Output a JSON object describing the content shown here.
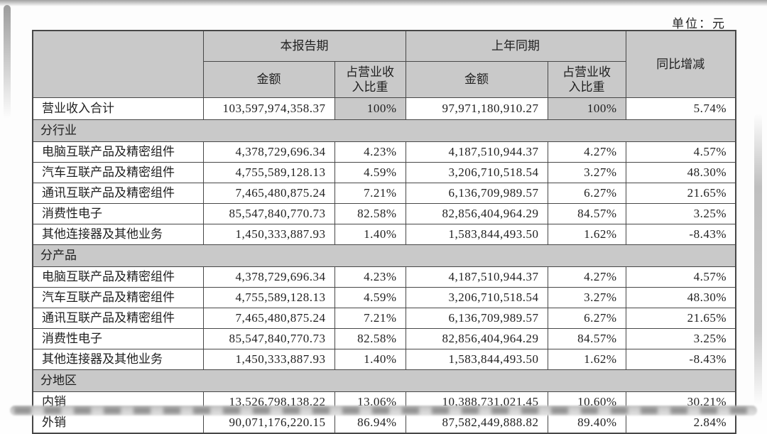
{
  "page": {
    "unit_label": "单位：元"
  },
  "colors": {
    "header_fill": "#c9c9c9",
    "border": "#474747",
    "text": "#1f1f1f"
  },
  "table": {
    "header": {
      "current_period": "本报告期",
      "prior_period": "上年同期",
      "yoy_change": "同比增减",
      "amount_current": "金额",
      "amount_prior": "金额",
      "revenue_share_current": "占营业收入比重",
      "revenue_share_prior": "占营业收入比重"
    },
    "total_row": {
      "label": "营业收入合计",
      "cur_amount": "103,597,974,358.37",
      "cur_share": "100%",
      "prior_amount": "97,971,180,910.27",
      "prior_share": "100%",
      "yoy": "5.74%"
    },
    "sections": [
      {
        "title": "分行业",
        "rows": [
          {
            "label": "电脑互联产品及精密组件",
            "cur_amount": "4,378,729,696.34",
            "cur_share": "4.23%",
            "prior_amount": "4,187,510,944.37",
            "prior_share": "4.27%",
            "yoy": "4.57%"
          },
          {
            "label": "汽车互联产品及精密组件",
            "cur_amount": "4,755,589,128.13",
            "cur_share": "4.59%",
            "prior_amount": "3,206,710,518.54",
            "prior_share": "3.27%",
            "yoy": "48.30%"
          },
          {
            "label": "通讯互联产品及精密组件",
            "cur_amount": "7,465,480,875.24",
            "cur_share": "7.21%",
            "prior_amount": "6,136,709,989.57",
            "prior_share": "6.27%",
            "yoy": "21.65%"
          },
          {
            "label": "消费性电子",
            "cur_amount": "85,547,840,770.73",
            "cur_share": "82.58%",
            "prior_amount": "82,856,404,964.29",
            "prior_share": "84.57%",
            "yoy": "3.25%"
          },
          {
            "label": "其他连接器及其他业务",
            "cur_amount": "1,450,333,887.93",
            "cur_share": "1.40%",
            "prior_amount": "1,583,844,493.50",
            "prior_share": "1.62%",
            "yoy": "-8.43%"
          }
        ]
      },
      {
        "title": "分产品",
        "rows": [
          {
            "label": "电脑互联产品及精密组件",
            "cur_amount": "4,378,729,696.34",
            "cur_share": "4.23%",
            "prior_amount": "4,187,510,944.37",
            "prior_share": "4.27%",
            "yoy": "4.57%"
          },
          {
            "label": "汽车互联产品及精密组件",
            "cur_amount": "4,755,589,128.13",
            "cur_share": "4.59%",
            "prior_amount": "3,206,710,518.54",
            "prior_share": "3.27%",
            "yoy": "48.30%"
          },
          {
            "label": "通讯互联产品及精密组件",
            "cur_amount": "7,465,480,875.24",
            "cur_share": "7.21%",
            "prior_amount": "6,136,709,989.57",
            "prior_share": "6.27%",
            "yoy": "21.65%"
          },
          {
            "label": "消费性电子",
            "cur_amount": "85,547,840,770.73",
            "cur_share": "82.58%",
            "prior_amount": "82,856,404,964.29",
            "prior_share": "84.57%",
            "yoy": "3.25%"
          },
          {
            "label": "其他连接器及其他业务",
            "cur_amount": "1,450,333,887.93",
            "cur_share": "1.40%",
            "prior_amount": "1,583,844,493.50",
            "prior_share": "1.62%",
            "yoy": "-8.43%"
          }
        ]
      },
      {
        "title": "分地区",
        "rows": [
          {
            "label": "内销",
            "cur_amount": "13,526,798,138.22",
            "cur_share": "13.06%",
            "prior_amount": "10,388,731,021.45",
            "prior_share": "10.60%",
            "yoy": "30.21%"
          },
          {
            "label": "外销",
            "cur_amount": "90,071,176,220.15",
            "cur_share": "86.94%",
            "prior_amount": "87,582,449,888.82",
            "prior_share": "89.40%",
            "yoy": "2.84%"
          }
        ]
      }
    ]
  }
}
